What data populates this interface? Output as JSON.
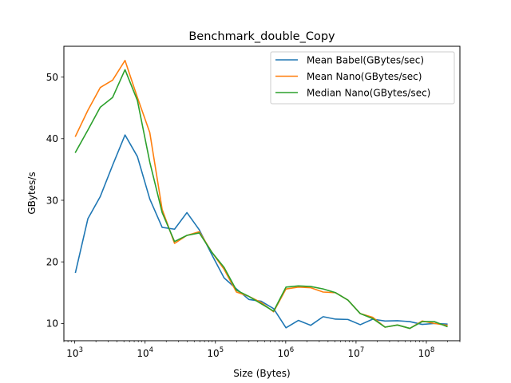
{
  "chart_data": {
    "type": "line",
    "title": "Benchmark_double_Copy",
    "xlabel": "Size (Bytes)",
    "ylabel": "GBytes/s",
    "xscale": "log",
    "xlim": [
      700,
      300000000
    ],
    "ylim": [
      7.2,
      55.0
    ],
    "xticks": [
      {
        "value": 1000,
        "base": "10",
        "exp": "3"
      },
      {
        "value": 10000,
        "base": "10",
        "exp": "4"
      },
      {
        "value": 100000,
        "base": "10",
        "exp": "5"
      },
      {
        "value": 1000000,
        "base": "10",
        "exp": "6"
      },
      {
        "value": 10000000,
        "base": "10",
        "exp": "7"
      },
      {
        "value": 100000000,
        "base": "10",
        "exp": "8"
      }
    ],
    "yticks": [
      10,
      20,
      30,
      40,
      50
    ],
    "legend": "top-right",
    "grid": false,
    "x": [
      1024,
      1536,
      2304,
      3456,
      5184,
      7776,
      11664,
      17496,
      26244,
      39366,
      59049,
      88574,
      132860,
      199290,
      298930,
      448400,
      672600,
      1008900,
      1513300,
      2270000,
      3405000,
      5107500,
      7661300,
      11492000,
      17238000,
      25857000,
      38785000,
      58178000,
      87267000,
      130900000,
      196350000
    ],
    "series": [
      {
        "name": "Mean Babel(GBytes/sec)",
        "color": "#1f77b4",
        "values": [
          18.3,
          27.0,
          30.6,
          35.7,
          40.6,
          37.1,
          30.2,
          25.6,
          25.3,
          28.0,
          25.2,
          21.2,
          17.4,
          15.6,
          13.9,
          13.6,
          12.4,
          9.3,
          10.5,
          9.7,
          11.1,
          10.7,
          10.65,
          9.8,
          10.7,
          10.4,
          10.45,
          10.3,
          9.85,
          10.0,
          9.9
        ]
      },
      {
        "name": "Mean Nano(GBytes/sec)",
        "color": "#ff7f0e",
        "values": [
          40.4,
          44.6,
          48.3,
          49.5,
          52.7,
          46.7,
          41.0,
          28.5,
          23.0,
          24.3,
          24.9,
          21.6,
          18.8,
          15.1,
          14.4,
          13.4,
          11.9,
          15.6,
          15.9,
          15.8,
          15.1,
          15.0,
          13.8,
          11.6,
          11.0,
          9.4,
          9.75,
          9.2,
          10.4,
          10.0,
          9.7
        ]
      },
      {
        "name": "Median Nano(GBytes/sec)",
        "color": "#2ca02c",
        "values": [
          37.8,
          41.4,
          45.1,
          46.7,
          51.2,
          46.2,
          36.2,
          28.0,
          23.3,
          24.3,
          24.7,
          21.6,
          19.1,
          15.4,
          14.4,
          13.2,
          12.0,
          15.9,
          16.1,
          16.0,
          15.6,
          15.0,
          13.8,
          11.6,
          10.8,
          9.4,
          9.75,
          9.2,
          10.3,
          10.3,
          9.5
        ]
      }
    ]
  }
}
